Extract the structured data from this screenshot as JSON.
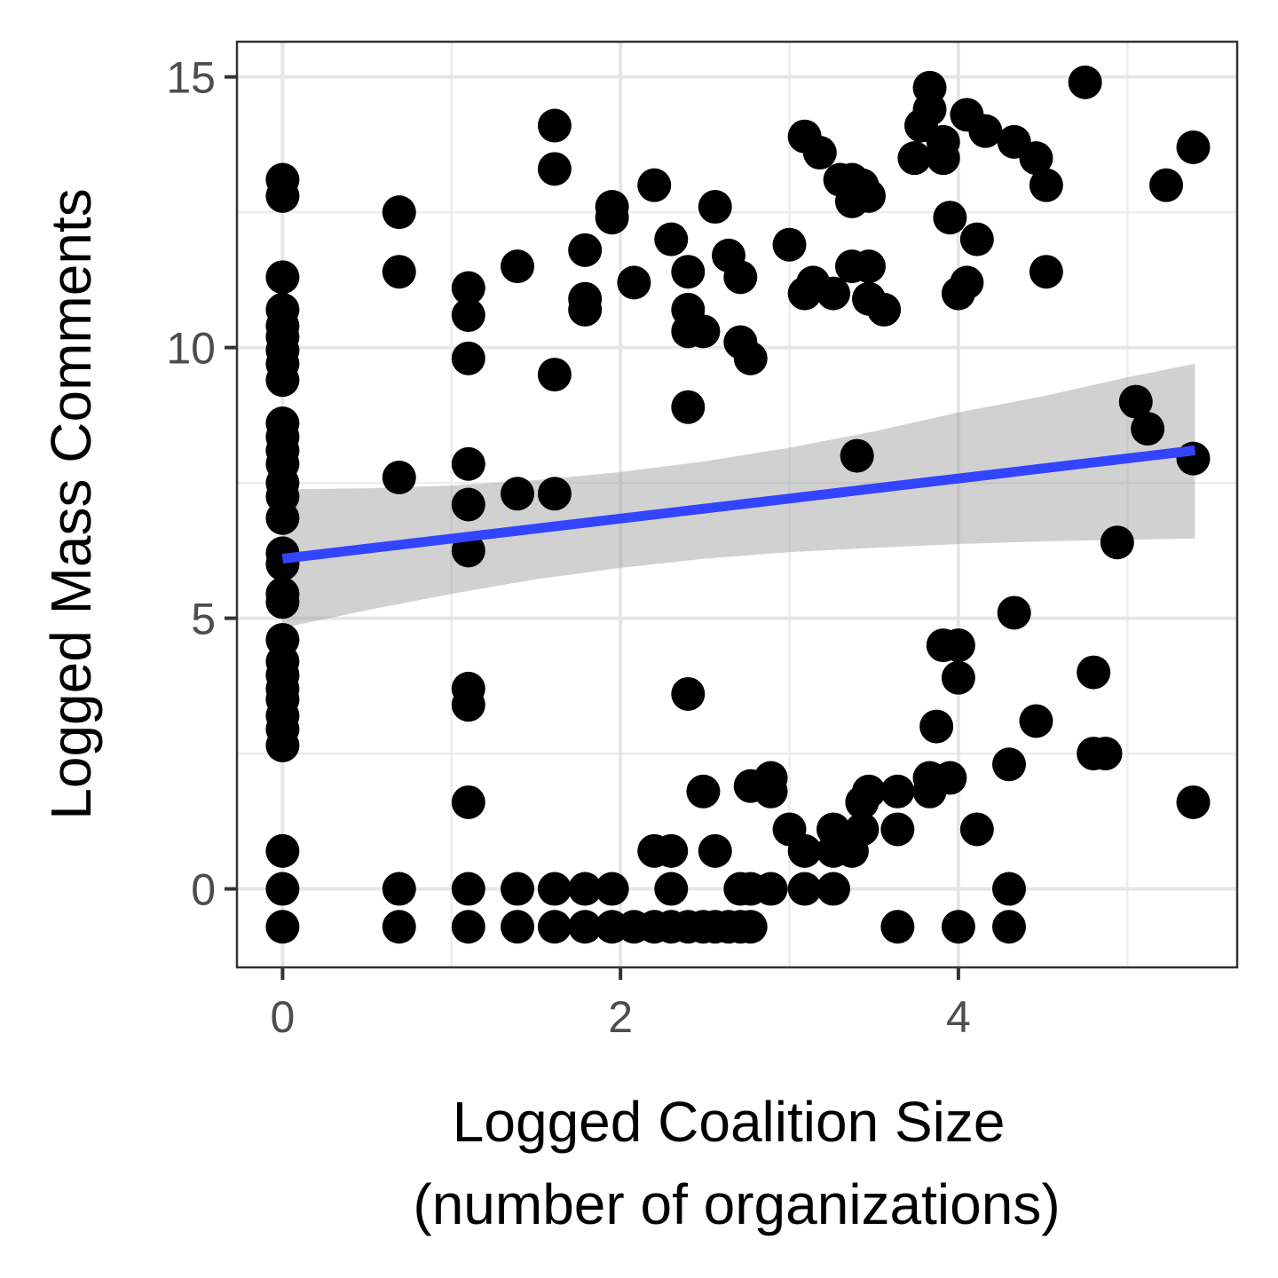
{
  "chart_data": {
    "type": "scatter",
    "xlabel_lines": [
      "Logged Coalition Size",
      "(number of organizations)"
    ],
    "ylabel": "Logged Mass Comments",
    "xlim": [
      -0.27,
      5.65
    ],
    "ylim": [
      -1.45,
      15.65
    ],
    "x_ticks": [
      0,
      2,
      4
    ],
    "y_ticks": [
      0,
      5,
      10,
      15
    ],
    "grid": true,
    "point_color": "#000000",
    "fit_color": "#3344ff",
    "ribbon_color": "#999999",
    "fit_line": {
      "x": [
        0,
        5.4
      ],
      "y": [
        6.1,
        8.1
      ]
    },
    "confidence_band": {
      "x": [
        0,
        0.5,
        1.0,
        1.5,
        2.0,
        2.5,
        3.0,
        3.5,
        4.0,
        4.5,
        5.0,
        5.4
      ],
      "upper": [
        7.38,
        7.4,
        7.45,
        7.55,
        7.7,
        7.9,
        8.15,
        8.45,
        8.8,
        9.1,
        9.45,
        9.7
      ],
      "lower": [
        4.82,
        5.15,
        5.45,
        5.72,
        5.93,
        6.1,
        6.22,
        6.3,
        6.37,
        6.42,
        6.45,
        6.47
      ]
    },
    "points": [
      [
        0,
        13.1
      ],
      [
        0,
        12.8
      ],
      [
        0,
        11.3
      ],
      [
        0,
        10.7
      ],
      [
        0,
        10.4
      ],
      [
        0,
        10.2
      ],
      [
        0,
        9.95
      ],
      [
        0,
        9.7
      ],
      [
        0,
        9.4
      ],
      [
        0,
        8.6
      ],
      [
        0,
        8.35
      ],
      [
        0,
        8.1
      ],
      [
        0,
        7.85
      ],
      [
        0,
        7.5
      ],
      [
        0,
        7.25
      ],
      [
        0,
        6.85
      ],
      [
        0,
        6.2
      ],
      [
        0,
        6.0
      ],
      [
        0,
        5.45
      ],
      [
        0,
        5.3
      ],
      [
        0,
        4.6
      ],
      [
        0,
        4.2
      ],
      [
        0,
        3.95
      ],
      [
        0,
        3.7
      ],
      [
        0,
        3.5
      ],
      [
        0,
        3.2
      ],
      [
        0,
        2.95
      ],
      [
        0,
        2.65
      ],
      [
        0,
        0.7
      ],
      [
        0,
        0
      ],
      [
        0,
        -0.7
      ],
      [
        0.69,
        12.5
      ],
      [
        0.69,
        11.4
      ],
      [
        0.69,
        7.6
      ],
      [
        0.69,
        0
      ],
      [
        0.69,
        -0.7
      ],
      [
        1.1,
        11.1
      ],
      [
        1.1,
        10.6
      ],
      [
        1.1,
        9.8
      ],
      [
        1.1,
        7.85
      ],
      [
        1.1,
        7.1
      ],
      [
        1.1,
        6.25
      ],
      [
        1.1,
        3.7
      ],
      [
        1.1,
        3.4
      ],
      [
        1.1,
        1.6
      ],
      [
        1.1,
        0
      ],
      [
        1.1,
        -0.7
      ],
      [
        1.39,
        11.5
      ],
      [
        1.39,
        7.3
      ],
      [
        1.39,
        0
      ],
      [
        1.39,
        -0.7
      ],
      [
        1.61,
        14.1
      ],
      [
        1.61,
        13.3
      ],
      [
        1.61,
        9.5
      ],
      [
        1.61,
        7.3
      ],
      [
        1.61,
        0
      ],
      [
        1.61,
        -0.7
      ],
      [
        1.79,
        11.8
      ],
      [
        1.79,
        10.9
      ],
      [
        1.79,
        10.7
      ],
      [
        1.79,
        0
      ],
      [
        1.79,
        -0.7
      ],
      [
        1.95,
        12.6
      ],
      [
        1.95,
        12.4
      ],
      [
        1.95,
        0
      ],
      [
        1.95,
        -0.7
      ],
      [
        2.08,
        11.2
      ],
      [
        2.08,
        -0.7
      ],
      [
        2.2,
        13.0
      ],
      [
        2.2,
        0.7
      ],
      [
        2.2,
        -0.7
      ],
      [
        2.3,
        12.0
      ],
      [
        2.3,
        0.7
      ],
      [
        2.3,
        0
      ],
      [
        2.3,
        -0.7
      ],
      [
        2.4,
        11.4
      ],
      [
        2.4,
        10.7
      ],
      [
        2.4,
        10.3
      ],
      [
        2.4,
        8.9
      ],
      [
        2.4,
        3.6
      ],
      [
        2.4,
        -0.7
      ],
      [
        2.49,
        10.3
      ],
      [
        2.49,
        1.8
      ],
      [
        2.49,
        -0.7
      ],
      [
        2.56,
        12.6
      ],
      [
        2.56,
        0.7
      ],
      [
        2.56,
        -0.7
      ],
      [
        2.64,
        11.7
      ],
      [
        2.64,
        -0.7
      ],
      [
        2.71,
        11.3
      ],
      [
        2.71,
        10.1
      ],
      [
        2.71,
        0
      ],
      [
        2.71,
        -0.7
      ],
      [
        2.77,
        9.8
      ],
      [
        2.77,
        1.9
      ],
      [
        2.77,
        0
      ],
      [
        2.77,
        -0.7
      ],
      [
        2.89,
        2.05
      ],
      [
        2.89,
        1.8
      ],
      [
        2.89,
        0
      ],
      [
        3.0,
        11.9
      ],
      [
        3.0,
        1.1
      ],
      [
        3.09,
        13.9
      ],
      [
        3.09,
        11.0
      ],
      [
        3.09,
        0.7
      ],
      [
        3.09,
        0
      ],
      [
        3.14,
        11.2
      ],
      [
        3.18,
        13.6
      ],
      [
        3.26,
        11.0
      ],
      [
        3.26,
        1.1
      ],
      [
        3.26,
        0.7
      ],
      [
        3.26,
        0
      ],
      [
        3.3,
        13.1
      ],
      [
        3.37,
        13.1
      ],
      [
        3.37,
        12.7
      ],
      [
        3.37,
        11.5
      ],
      [
        3.37,
        0.7
      ],
      [
        3.4,
        8.0
      ],
      [
        3.43,
        13.0
      ],
      [
        3.43,
        1.6
      ],
      [
        3.43,
        1.1
      ],
      [
        3.47,
        12.8
      ],
      [
        3.47,
        11.5
      ],
      [
        3.47,
        10.9
      ],
      [
        3.47,
        1.8
      ],
      [
        3.56,
        10.7
      ],
      [
        3.64,
        1.8
      ],
      [
        3.64,
        1.1
      ],
      [
        3.64,
        -0.7
      ],
      [
        3.74,
        13.5
      ],
      [
        3.78,
        14.1
      ],
      [
        3.83,
        14.4
      ],
      [
        3.83,
        14.8
      ],
      [
        3.83,
        2.05
      ],
      [
        3.83,
        1.8
      ],
      [
        3.87,
        3.0
      ],
      [
        3.91,
        13.8
      ],
      [
        3.91,
        13.5
      ],
      [
        3.91,
        4.5
      ],
      [
        3.95,
        12.4
      ],
      [
        3.95,
        2.05
      ],
      [
        4.0,
        11.0
      ],
      [
        4.0,
        4.5
      ],
      [
        4.0,
        3.9
      ],
      [
        4.0,
        -0.7
      ],
      [
        4.05,
        14.3
      ],
      [
        4.05,
        11.2
      ],
      [
        4.11,
        12.0
      ],
      [
        4.11,
        1.1
      ],
      [
        4.16,
        14.0
      ],
      [
        4.3,
        2.3
      ],
      [
        4.3,
        0
      ],
      [
        4.3,
        -0.7
      ],
      [
        4.33,
        13.8
      ],
      [
        4.33,
        5.1
      ],
      [
        4.46,
        13.5
      ],
      [
        4.46,
        3.1
      ],
      [
        4.52,
        13.0
      ],
      [
        4.52,
        11.4
      ],
      [
        4.75,
        14.9
      ],
      [
        4.8,
        4.0
      ],
      [
        4.8,
        2.5
      ],
      [
        4.87,
        2.5
      ],
      [
        4.94,
        6.4
      ],
      [
        5.05,
        9.0
      ],
      [
        5.12,
        8.5
      ],
      [
        5.23,
        13.0
      ],
      [
        5.39,
        13.7
      ],
      [
        5.39,
        7.95
      ],
      [
        5.39,
        1.6
      ]
    ]
  }
}
